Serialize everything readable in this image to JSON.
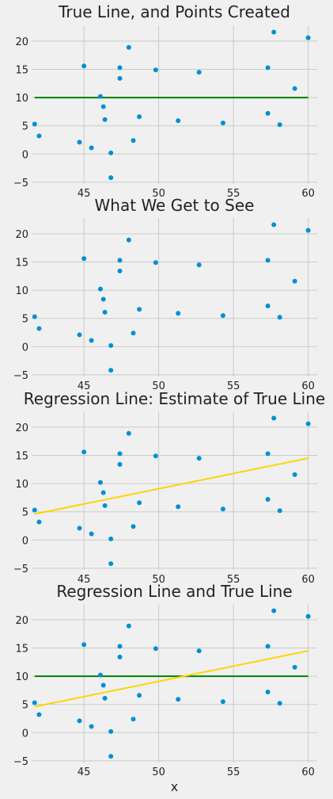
{
  "colors": {
    "background": "#f0f0f0",
    "grid": "#cbcbcb",
    "points": "#008fd5",
    "true_line": "#008000",
    "regression_line": "#ffd400"
  },
  "chart_data": [
    {
      "type": "scatter",
      "title": "True Line, and Points Created",
      "xlabel": "",
      "ylabel": "",
      "xlim": [
        41.5,
        60.6
      ],
      "ylim": [
        -5.3,
        22.8
      ],
      "xticks": [
        45,
        50,
        55,
        60
      ],
      "yticks": [
        -5,
        0,
        5,
        10,
        15,
        20
      ],
      "grid": true,
      "show_points": true,
      "lines": [
        {
          "x": [
            41.7,
            60.0
          ],
          "y": [
            10.0,
            10.0
          ],
          "color": "#008000"
        }
      ]
    },
    {
      "type": "scatter",
      "title": "What We Get to See",
      "xlabel": "",
      "ylabel": "",
      "xlim": [
        41.5,
        60.6
      ],
      "ylim": [
        -5.3,
        22.8
      ],
      "xticks": [
        45,
        50,
        55,
        60
      ],
      "yticks": [
        -5,
        0,
        5,
        10,
        15,
        20
      ],
      "grid": true,
      "show_points": true,
      "lines": []
    },
    {
      "type": "scatter",
      "title": "Regression Line: Estimate of True Line",
      "xlabel": "",
      "ylabel": "",
      "xlim": [
        41.5,
        60.6
      ],
      "ylim": [
        -5.3,
        22.8
      ],
      "xticks": [
        45,
        50,
        55,
        60
      ],
      "yticks": [
        -5,
        0,
        5,
        10,
        15,
        20
      ],
      "grid": true,
      "show_points": true,
      "lines": [
        {
          "x": [
            41.7,
            60.0
          ],
          "y": [
            4.6,
            14.5
          ],
          "color": "#ffd400"
        }
      ]
    },
    {
      "type": "scatter",
      "title": "Regression Line and True Line",
      "xlabel": "x",
      "ylabel": "",
      "xlim": [
        41.5,
        60.6
      ],
      "ylim": [
        -5.3,
        22.8
      ],
      "xticks": [
        45,
        50,
        55,
        60
      ],
      "yticks": [
        -5,
        0,
        5,
        10,
        15,
        20
      ],
      "grid": true,
      "show_points": true,
      "lines": [
        {
          "x": [
            41.7,
            60.0
          ],
          "y": [
            10.0,
            10.0
          ],
          "color": "#008000"
        },
        {
          "x": [
            41.7,
            60.0
          ],
          "y": [
            4.6,
            14.5
          ],
          "color": "#ffd400"
        }
      ]
    }
  ],
  "points": {
    "x": [
      41.7,
      42.0,
      44.7,
      45.0,
      45.5,
      46.1,
      46.3,
      46.4,
      46.8,
      46.8,
      47.4,
      47.4,
      48.0,
      48.3,
      48.7,
      49.8,
      51.3,
      52.7,
      54.3,
      57.3,
      57.3,
      57.7,
      58.1,
      59.1,
      60.0
    ],
    "y": [
      5.3,
      3.2,
      2.1,
      15.6,
      1.1,
      10.2,
      8.4,
      6.1,
      0.2,
      -4.2,
      15.3,
      13.4,
      18.9,
      2.4,
      6.6,
      14.9,
      5.9,
      14.5,
      5.5,
      15.3,
      7.2,
      21.6,
      5.2,
      11.6,
      20.6
    ]
  }
}
